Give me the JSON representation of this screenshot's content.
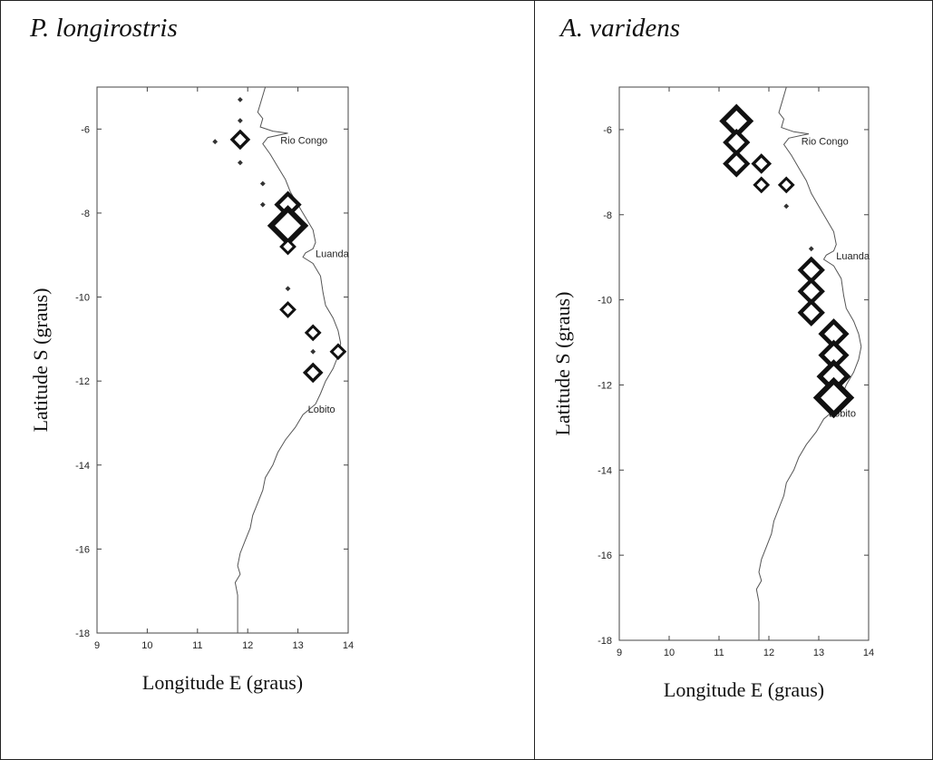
{
  "chart_data": [
    {
      "type": "scatter",
      "title": "P. longirostris",
      "xlabel": "Longitude E (graus)",
      "ylabel": "Latitude S (graus)",
      "xlim": [
        9,
        14
      ],
      "ylim": [
        -18,
        -5
      ],
      "xticks": [
        9,
        10,
        11,
        12,
        13,
        14
      ],
      "yticks": [
        -6,
        -8,
        -10,
        -12,
        -14,
        -16,
        -18
      ],
      "place_labels": [
        {
          "text": "Rio Congo",
          "lon": 12.65,
          "lat": -6.35
        },
        {
          "text": "Luanda",
          "lon": 13.35,
          "lat": -9.05
        },
        {
          "text": "Lobito",
          "lon": 13.2,
          "lat": -12.75
        }
      ],
      "points": [
        {
          "lon": 11.85,
          "lat": -5.3,
          "size": 1
        },
        {
          "lon": 11.85,
          "lat": -5.8,
          "size": 1
        },
        {
          "lon": 11.35,
          "lat": -6.3,
          "size": 1
        },
        {
          "lon": 11.85,
          "lat": -6.25,
          "size": 2
        },
        {
          "lon": 11.85,
          "lat": -6.8,
          "size": 1
        },
        {
          "lon": 12.3,
          "lat": -7.3,
          "size": 1
        },
        {
          "lon": 12.3,
          "lat": -7.8,
          "size": 1
        },
        {
          "lon": 12.8,
          "lat": -7.8,
          "size": 3
        },
        {
          "lon": 12.8,
          "lat": -8.3,
          "size": 5
        },
        {
          "lon": 12.8,
          "lat": -8.8,
          "size": 1.5
        },
        {
          "lon": 12.8,
          "lat": -9.8,
          "size": 1
        },
        {
          "lon": 12.8,
          "lat": -10.3,
          "size": 1.5
        },
        {
          "lon": 13.3,
          "lat": -10.85,
          "size": 1.5
        },
        {
          "lon": 13.3,
          "lat": -11.3,
          "size": 1
        },
        {
          "lon": 13.8,
          "lat": -11.3,
          "size": 1.5
        },
        {
          "lon": 13.3,
          "lat": -11.8,
          "size": 2
        }
      ]
    },
    {
      "type": "scatter",
      "title": "A.  varidens",
      "xlabel": "Longitude E (graus)",
      "ylabel": "Latitude S (graus)",
      "xlim": [
        9,
        14
      ],
      "ylim": [
        -18,
        -5
      ],
      "xticks": [
        9,
        10,
        11,
        12,
        13,
        14
      ],
      "yticks": [
        -6,
        -8,
        -10,
        -12,
        -14,
        -16,
        -18
      ],
      "place_labels": [
        {
          "text": "Rio Congo",
          "lon": 12.65,
          "lat": -6.35
        },
        {
          "text": "Luanda",
          "lon": 13.35,
          "lat": -9.05
        },
        {
          "text": "Lobito",
          "lon": 13.2,
          "lat": -12.75
        }
      ],
      "points": [
        {
          "lon": 11.35,
          "lat": -5.8,
          "size": 4
        },
        {
          "lon": 11.35,
          "lat": -6.3,
          "size": 3
        },
        {
          "lon": 11.35,
          "lat": -6.8,
          "size": 3
        },
        {
          "lon": 11.85,
          "lat": -6.8,
          "size": 2
        },
        {
          "lon": 11.85,
          "lat": -7.3,
          "size": 1.5
        },
        {
          "lon": 12.35,
          "lat": -7.3,
          "size": 1.5
        },
        {
          "lon": 12.35,
          "lat": -7.8,
          "size": 1
        },
        {
          "lon": 12.85,
          "lat": -8.8,
          "size": 1
        },
        {
          "lon": 12.85,
          "lat": -9.3,
          "size": 3
        },
        {
          "lon": 12.85,
          "lat": -9.8,
          "size": 3
        },
        {
          "lon": 12.85,
          "lat": -10.3,
          "size": 3
        },
        {
          "lon": 13.3,
          "lat": -10.8,
          "size": 3.5
        },
        {
          "lon": 13.3,
          "lat": -11.3,
          "size": 3.5
        },
        {
          "lon": 13.3,
          "lat": -11.8,
          "size": 4
        },
        {
          "lon": 13.3,
          "lat": -12.3,
          "size": 5
        }
      ]
    }
  ]
}
